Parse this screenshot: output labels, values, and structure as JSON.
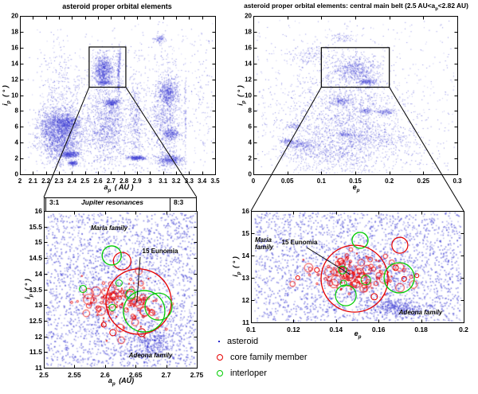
{
  "titles": {
    "top_left": "asteroid proper orbital elements",
    "top_right_pre": "asteroid proper orbital elements: central main belt (2.5 AU<a",
    "top_right_sub": "p",
    "top_right_post": "<2.82 AU)"
  },
  "labels": {
    "ap_top": {
      "main": "a",
      "sub": "p",
      "rest": " ( AU )"
    },
    "ap_bottom": {
      "main": "a",
      "sub": "p",
      "rest": " (AU)"
    },
    "ep": {
      "main": "e",
      "sub": "p",
      "rest": ""
    },
    "ip": {
      "main": "i",
      "sub": "p",
      "rest": " ( ° )"
    }
  },
  "annotations": {
    "resonance_left": "3:1",
    "resonance_center": "Jupiter resonances",
    "resonance_right": "8:3",
    "maria_bl": "Maria family",
    "eunomia_bl": "15 Eunomia",
    "adeona_bl": "Adeona family",
    "maria_br_1": "Maria",
    "maria_br_2": "family",
    "eunomia_br": "15 Eunomia",
    "adeona_br": "Adeona family"
  },
  "legend": {
    "items": [
      {
        "label": "asteroid",
        "marker": "dot",
        "color": "#2828cd"
      },
      {
        "label": "core family member",
        "marker": "open-circle",
        "color": "#e60000"
      },
      {
        "label": "interloper",
        "marker": "open-circle",
        "color": "#00cc00"
      }
    ]
  },
  "colors": {
    "asteroid_point": "#2828cd",
    "asteroid_point_light": "#9898e8",
    "core_family": "#e60000",
    "interloper": "#00cc00"
  },
  "chart_data": [
    {
      "id": "top-left",
      "type": "scatter",
      "title": "asteroid proper orbital elements",
      "xlabel": "a_p ( AU )",
      "ylabel": "i_p ( deg )",
      "xlim": [
        2.0,
        3.5
      ],
      "ylim": [
        0,
        20
      ],
      "xticks": {
        "values": [
          2.0,
          2.1,
          2.2,
          2.3,
          2.4,
          2.5,
          2.6,
          2.7,
          2.8,
          2.9,
          3.0,
          3.1,
          3.2,
          3.3,
          3.4,
          3.5
        ],
        "labels": [
          "2",
          "2.1",
          "2.2",
          "2.3",
          "2.4",
          "2.5",
          "2.6",
          "2.7",
          "2.8",
          "2.9",
          "3",
          "3.1",
          "3.2",
          "3.3",
          "3.4",
          "3.5"
        ]
      },
      "yticks": {
        "values": [
          0,
          2,
          4,
          6,
          8,
          10,
          12,
          14,
          16,
          18,
          20
        ],
        "labels": [
          "0",
          "2",
          "4",
          "6",
          "8",
          "10",
          "12",
          "14",
          "16",
          "18",
          "20"
        ]
      },
      "dot": 1,
      "clusters": [
        [
          2.31,
          5.0,
          0.085,
          1.7,
          2000
        ],
        [
          2.36,
          6.55,
          0.05,
          0.4,
          450
        ],
        [
          2.25,
          6.5,
          0.055,
          0.9,
          300
        ],
        [
          2.38,
          2.55,
          0.035,
          0.2,
          380
        ],
        [
          2.405,
          1.45,
          0.022,
          0.12,
          150
        ],
        [
          2.33,
          11.0,
          0.1,
          2.8,
          300
        ],
        [
          2.67,
          6.2,
          0.085,
          2.8,
          1300
        ],
        [
          2.64,
          13.3,
          0.042,
          1.0,
          800
        ],
        [
          2.645,
          11.62,
          0.03,
          0.14,
          160
        ],
        [
          2.7,
          9.1,
          0.028,
          0.22,
          240
        ],
        [
          2.755,
          12.5,
          0.005,
          1.8,
          150
        ],
        [
          2.765,
          14.8,
          0.004,
          0.7,
          50
        ],
        [
          2.89,
          6.5,
          0.035,
          3.2,
          420
        ],
        [
          2.9,
          2.1,
          0.032,
          0.12,
          320
        ],
        [
          3.07,
          17.1,
          0.02,
          0.3,
          80
        ],
        [
          3.12,
          7.5,
          0.065,
          3.8,
          1000
        ],
        [
          3.14,
          10.4,
          0.035,
          0.75,
          420
        ],
        [
          3.15,
          1.85,
          0.05,
          0.3,
          350
        ],
        [
          3.16,
          5.15,
          0.03,
          0.35,
          200
        ],
        [
          3.27,
          8.0,
          0.0025,
          4.5,
          80
        ],
        [
          3.4,
          9.0,
          0.05,
          4.5,
          120
        ]
      ],
      "uniform": [
        [
          2.06,
          3.46,
          0.3,
          19.0,
          300
        ]
      ],
      "zoom_box": {
        "x0": 2.532,
        "x1": 2.814,
        "y0": 11.0,
        "y1": 16.08
      }
    },
    {
      "id": "top-right",
      "type": "scatter",
      "title": "asteroid proper orbital elements: central main belt (2.5 AU<a_p<2.82 AU)",
      "xlabel": "e_p",
      "ylabel": "i_p ( deg )",
      "xlim": [
        0,
        0.3
      ],
      "ylim": [
        0,
        20
      ],
      "xticks": {
        "values": [
          0,
          0.05,
          0.1,
          0.15,
          0.2,
          0.25,
          0.3
        ],
        "labels": [
          "0",
          "0.05",
          "0.1",
          "0.15",
          "0.2",
          "0.25",
          "0.3"
        ]
      },
      "yticks": {
        "values": [
          0,
          2,
          4,
          6,
          8,
          10,
          12,
          14,
          16,
          18,
          20
        ],
        "labels": [
          "0",
          "2",
          "4",
          "6",
          "8",
          "10",
          "12",
          "14",
          "16",
          "18",
          "20"
        ]
      },
      "dot": 1,
      "clusters": [
        [
          0.135,
          6.0,
          0.05,
          4.0,
          2300
        ],
        [
          0.15,
          13.3,
          0.017,
          0.85,
          600
        ],
        [
          0.168,
          11.75,
          0.007,
          0.16,
          140
        ],
        [
          0.128,
          9.3,
          0.01,
          0.28,
          160
        ],
        [
          0.193,
          7.9,
          0.007,
          0.16,
          110
        ],
        [
          0.164,
          8.05,
          0.006,
          0.14,
          70
        ],
        [
          0.135,
          5.05,
          0.007,
          0.14,
          80
        ],
        [
          0.07,
          3.8,
          0.012,
          0.3,
          200
        ],
        [
          0.05,
          4.25,
          0.006,
          0.14,
          80
        ],
        [
          0.085,
          15.2,
          0.02,
          0.7,
          140
        ],
        [
          0.13,
          17.3,
          0.012,
          0.3,
          60
        ],
        [
          0.06,
          6.1,
          0.008,
          0.2,
          70
        ],
        [
          0.175,
          4.6,
          0.03,
          0.6,
          220
        ],
        [
          0.105,
          2.6,
          0.03,
          0.7,
          220
        ]
      ],
      "uniform": [
        [
          0.005,
          0.295,
          0.3,
          19.5,
          450
        ]
      ],
      "zoom_box": {
        "x0": 0.1,
        "x1": 0.2,
        "y0": 11.0,
        "y1": 16.0
      }
    },
    {
      "id": "bottom-left",
      "type": "scatter",
      "title": "",
      "xlabel": "a_p (AU)",
      "ylabel": "i_p ( deg )",
      "xlim": [
        2.5,
        2.75
      ],
      "ylim": [
        11,
        16
      ],
      "xticks": {
        "values": [
          2.5,
          2.55,
          2.6,
          2.65,
          2.7,
          2.75
        ],
        "labels": [
          "2.5",
          "2.55",
          "2.6",
          "2.65",
          "2.7",
          "2.75"
        ]
      },
      "yticks": {
        "values": [
          11,
          11.5,
          12,
          12.5,
          13,
          13.5,
          14,
          14.5,
          15,
          15.5,
          16
        ],
        "labels": [
          "11",
          "11.5",
          "12",
          "12.5",
          "13",
          "13.5",
          "14",
          "14.5",
          "15",
          "15.5",
          "16"
        ]
      },
      "dot": 1.6,
      "clusters": [
        [
          2.63,
          13.2,
          0.05,
          1.0,
          450
        ],
        [
          2.673,
          11.8,
          0.018,
          0.26,
          260
        ]
      ],
      "uniform": [
        [
          2.503,
          2.747,
          11.05,
          15.95,
          2400
        ]
      ],
      "family_cluster": {
        "center": [
          2.63,
          13.1
        ],
        "sigma": [
          0.033,
          0.4
        ],
        "n": 120,
        "rmin": 1.2,
        "rmax": 6.5
      },
      "resonance_ticks": [
        2.5,
        2.706
      ],
      "circles": [
        {
          "x": 2.655,
          "y": 13.11,
          "r": 41,
          "c": "red",
          "w": 1.3
        },
        {
          "x": 2.628,
          "y": 14.4,
          "r": 11,
          "c": "red",
          "w": 1.2
        },
        {
          "x": 2.598,
          "y": 12.37,
          "r": 3,
          "c": "red",
          "w": 1
        },
        {
          "x": 2.613,
          "y": 12.12,
          "r": 4,
          "c": "red",
          "w": 1
        },
        {
          "x": 2.66,
          "y": 12.12,
          "r": 5,
          "c": "red",
          "w": 1
        },
        {
          "x": 2.611,
          "y": 14.58,
          "r": 12,
          "c": "green",
          "w": 1.3
        },
        {
          "x": 2.664,
          "y": 12.8,
          "r": 26,
          "c": "green",
          "w": 1.3
        },
        {
          "x": 2.6875,
          "y": 12.95,
          "r": 17,
          "c": "green",
          "w": 1.2
        },
        {
          "x": 2.564,
          "y": 13.51,
          "r": 4.5,
          "c": "green",
          "w": 1.1
        },
        {
          "x": 2.612,
          "y": 12.92,
          "r": 4,
          "c": "green",
          "w": 1
        },
        {
          "x": 2.642,
          "y": 13.35,
          "r": 6,
          "c": "green",
          "w": 1
        },
        {
          "x": 2.623,
          "y": 13.7,
          "r": 4,
          "c": "green",
          "w": 1
        }
      ],
      "leader": [
        [
          2.6575,
          14.53
        ],
        [
          2.652,
          13.08
        ]
      ],
      "text_labels": [
        "Maria family",
        "15 Eunomia",
        "Adeona family"
      ]
    },
    {
      "id": "bottom-right",
      "type": "scatter",
      "title": "",
      "xlabel": "e_p",
      "ylabel": "i_p ( deg )",
      "xlim": [
        0.1,
        0.2
      ],
      "ylim": [
        11,
        16
      ],
      "xticks": {
        "values": [
          0.1,
          0.12,
          0.14,
          0.16,
          0.18,
          0.2
        ],
        "labels": [
          "0.1",
          "0.12",
          "0.14",
          "0.16",
          "0.18",
          "0.2"
        ]
      },
      "yticks": {
        "values": [
          11,
          12,
          13,
          14,
          15,
          16
        ],
        "labels": [
          "11",
          "12",
          "13",
          "14",
          "15",
          "16"
        ]
      },
      "dot": 1.6,
      "clusters": [
        [
          0.15,
          13.2,
          0.013,
          0.8,
          450
        ],
        [
          0.168,
          11.7,
          0.006,
          0.18,
          260
        ]
      ],
      "uniform": [
        [
          0.1015,
          0.1985,
          11.05,
          15.95,
          2400
        ]
      ],
      "family_cluster": {
        "center": [
          0.1485,
          13.1
        ],
        "sigma": [
          0.01,
          0.42
        ],
        "n": 120,
        "rmin": 1.2,
        "rmax": 6.5
      },
      "circles": [
        {
          "x": 0.1487,
          "y": 12.96,
          "r": 42,
          "c": "red",
          "w": 1.3
        },
        {
          "x": 0.17,
          "y": 14.46,
          "r": 10,
          "c": "red",
          "w": 1.2
        },
        {
          "x": 0.131,
          "y": 13.35,
          "r": 3,
          "c": "red",
          "w": 1
        },
        {
          "x": 0.168,
          "y": 13.45,
          "r": 3.5,
          "c": "red",
          "w": 1
        },
        {
          "x": 0.172,
          "y": 12.95,
          "r": 3,
          "c": "red",
          "w": 1
        },
        {
          "x": 0.122,
          "y": 13.0,
          "r": 2.5,
          "c": "red",
          "w": 1
        },
        {
          "x": 0.178,
          "y": 13.1,
          "r": 2.5,
          "c": "red",
          "w": 1
        },
        {
          "x": 0.158,
          "y": 12.15,
          "r": 4,
          "c": "red",
          "w": 1
        },
        {
          "x": 0.1513,
          "y": 14.68,
          "r": 10,
          "c": "green",
          "w": 1.3
        },
        {
          "x": 0.1697,
          "y": 13.0,
          "r": 19,
          "c": "green",
          "w": 1.3
        },
        {
          "x": 0.1446,
          "y": 12.21,
          "r": 13,
          "c": "green",
          "w": 1.2
        },
        {
          "x": 0.143,
          "y": 13.35,
          "r": 5,
          "c": "green",
          "w": 1
        },
        {
          "x": 0.154,
          "y": 12.9,
          "r": 6,
          "c": "green",
          "w": 1
        },
        {
          "x": 0.1435,
          "y": 12.75,
          "r": 4,
          "c": "green",
          "w": 1
        }
      ],
      "leader": [
        [
          0.1262,
          14.36
        ],
        [
          0.1468,
          13.14
        ]
      ],
      "text_labels": [
        "Maria",
        "family",
        "15 Eunomia",
        "Adeona family"
      ]
    }
  ]
}
